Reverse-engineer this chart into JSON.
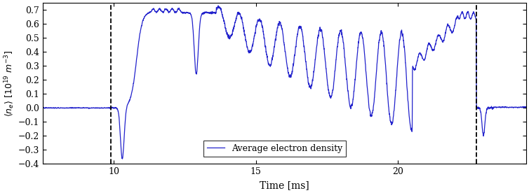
{
  "title": "",
  "xlabel": "Time [ms]",
  "xlim": [
    7.5,
    24.5
  ],
  "ylim": [
    -0.4,
    0.75
  ],
  "yticks": [
    -0.4,
    -0.3,
    -0.2,
    -0.1,
    0.0,
    0.1,
    0.2,
    0.3,
    0.4,
    0.5,
    0.6,
    0.7
  ],
  "xticks": [
    10,
    15,
    20
  ],
  "vlines": [
    9.9,
    22.75
  ],
  "line_color": "#2222cc",
  "legend_label": "Average electron density",
  "background_color": "#ffffff",
  "line_width": 0.9
}
